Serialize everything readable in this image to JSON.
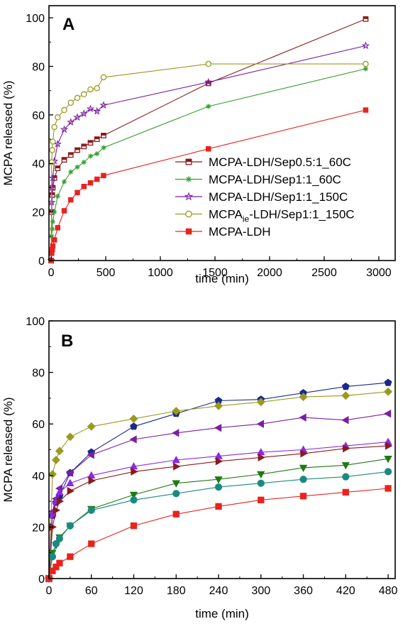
{
  "chart_data": [
    {
      "panel_label": "A",
      "type": "line",
      "xlabel": "time (min)",
      "ylabel": "MCPA released (%)",
      "xlim": [
        -20,
        3150
      ],
      "ylim": [
        0,
        105
      ],
      "xticks": [
        0,
        500,
        1000,
        1500,
        2000,
        2500,
        3000
      ],
      "yticks": [
        0,
        20,
        40,
        60,
        80,
        100
      ],
      "legend_position": "lower-right",
      "series": [
        {
          "name": "MCPA-LDH/Sep0.5:1_60C",
          "color": "#8b1a1a",
          "marker": "square-open",
          "x": [
            0,
            5,
            10,
            15,
            30,
            60,
            120,
            180,
            240,
            300,
            360,
            420,
            480,
            1440,
            2880
          ],
          "y": [
            0,
            20,
            27,
            30,
            34,
            38,
            41.5,
            43.5,
            45.5,
            47,
            48.5,
            50,
            51.5,
            73,
            99.5
          ]
        },
        {
          "name": "MCPA-LDH/Sep1:1_60C",
          "color": "#33a02c",
          "marker": "asterisk",
          "x": [
            0,
            5,
            10,
            15,
            30,
            60,
            120,
            180,
            240,
            300,
            360,
            420,
            480,
            1440,
            2880
          ],
          "y": [
            0,
            10,
            13,
            16,
            20,
            26.5,
            32.5,
            36.5,
            38.5,
            40.5,
            43,
            44,
            46.5,
            63.5,
            79
          ]
        },
        {
          "name": "MCPA-LDH/Sep1:1_150C",
          "color": "#7b1fa2",
          "marker": "star",
          "x": [
            0,
            5,
            10,
            15,
            30,
            60,
            120,
            180,
            240,
            300,
            360,
            420,
            480,
            1440,
            2880
          ],
          "y": [
            0,
            24,
            30,
            34,
            41,
            48,
            54,
            57,
            59,
            60.5,
            62.5,
            61.5,
            64,
            73.5,
            88.5
          ]
        },
        {
          "name": "MCPA",
          "name_subscript": "ie",
          "name_suffix": "-LDH/Sep1:1_150C",
          "color": "#9a9a20",
          "marker": "circle-open",
          "x": [
            0,
            5,
            10,
            15,
            30,
            60,
            120,
            180,
            240,
            300,
            360,
            420,
            480,
            1440,
            2880
          ],
          "y": [
            0,
            40.5,
            45.5,
            49,
            55,
            59,
            62,
            65,
            67,
            68.5,
            70.5,
            71,
            75.5,
            81,
            81
          ]
        },
        {
          "name": "MCPA-LDH",
          "color": "#e8231e",
          "marker": "square",
          "x": [
            0,
            5,
            10,
            15,
            30,
            60,
            120,
            180,
            240,
            300,
            360,
            420,
            480,
            1440,
            2880
          ],
          "y": [
            0,
            3,
            4.5,
            6,
            8.5,
            13.5,
            20.5,
            25,
            28,
            30.5,
            32,
            33.5,
            35,
            46,
            62
          ]
        }
      ]
    },
    {
      "panel_label": "B",
      "type": "line",
      "xlabel": "time (min)",
      "ylabel": "MCPA released (%)",
      "xlim": [
        0,
        490
      ],
      "ylim": [
        0,
        100
      ],
      "xticks": [
        0,
        60,
        120,
        180,
        240,
        300,
        360,
        420,
        480
      ],
      "yticks": [
        0,
        20,
        40,
        60,
        80,
        100
      ],
      "series": [
        {
          "color": "#1a2a8a",
          "marker": "pentagon",
          "x": [
            0,
            5,
            10,
            15,
            30,
            60,
            120,
            180,
            240,
            300,
            360,
            420,
            480
          ],
          "y": [
            0,
            24.5,
            29.5,
            32,
            41,
            49,
            59,
            64,
            69,
            69.5,
            72,
            74.5,
            76
          ]
        },
        {
          "color": "#9a9a20",
          "marker": "diamond",
          "x": [
            0,
            5,
            10,
            15,
            30,
            60,
            120,
            180,
            240,
            300,
            360,
            420,
            480
          ],
          "y": [
            0,
            40.5,
            46,
            49.5,
            55,
            59,
            62,
            65,
            67,
            68.5,
            70.5,
            71,
            72.5
          ]
        },
        {
          "color": "#7b1fa2",
          "marker": "triangle-left",
          "x": [
            0,
            5,
            10,
            15,
            30,
            60,
            120,
            180,
            240,
            300,
            360,
            420,
            480
          ],
          "y": [
            0,
            26,
            31,
            35,
            41,
            48,
            54,
            56.5,
            58.5,
            60,
            62.5,
            61.5,
            64
          ]
        },
        {
          "color": "#8a2be2",
          "marker": "triangle-up",
          "x": [
            0,
            5,
            10,
            15,
            30,
            60,
            120,
            180,
            240,
            300,
            360,
            420,
            480
          ],
          "y": [
            0,
            25,
            30,
            33.5,
            37,
            40,
            43.5,
            46,
            47.5,
            49,
            50,
            51.5,
            53
          ]
        },
        {
          "color": "#8b1a1a",
          "marker": "triangle-right",
          "x": [
            0,
            5,
            10,
            15,
            30,
            60,
            120,
            180,
            240,
            300,
            360,
            420,
            480
          ],
          "y": [
            0,
            20,
            26.5,
            30,
            34,
            38,
            41.5,
            43.5,
            45.5,
            47,
            48.5,
            50.5,
            51.5
          ]
        },
        {
          "color": "#1e7a12",
          "marker": "triangle-down",
          "x": [
            0,
            5,
            10,
            15,
            30,
            60,
            120,
            180,
            240,
            300,
            360,
            420,
            480
          ],
          "y": [
            0,
            10,
            13,
            16,
            20.5,
            27,
            32.5,
            37,
            38.5,
            40.5,
            43,
            44,
            46.5
          ]
        },
        {
          "color": "#1a8a80",
          "marker": "circle",
          "x": [
            0,
            5,
            10,
            15,
            30,
            60,
            120,
            180,
            240,
            300,
            360,
            420,
            480
          ],
          "y": [
            0,
            8.5,
            13.5,
            15.5,
            20.5,
            26.5,
            30.5,
            33,
            35.5,
            37,
            38.5,
            39.5,
            41.5
          ]
        },
        {
          "color": "#e8231e",
          "marker": "square",
          "x": [
            0,
            5,
            10,
            15,
            30,
            60,
            120,
            180,
            240,
            300,
            360,
            420,
            480
          ],
          "y": [
            0,
            3,
            4.5,
            6,
            8.5,
            13.5,
            20.5,
            25,
            28,
            30.5,
            32,
            33.5,
            35
          ]
        }
      ]
    }
  ]
}
